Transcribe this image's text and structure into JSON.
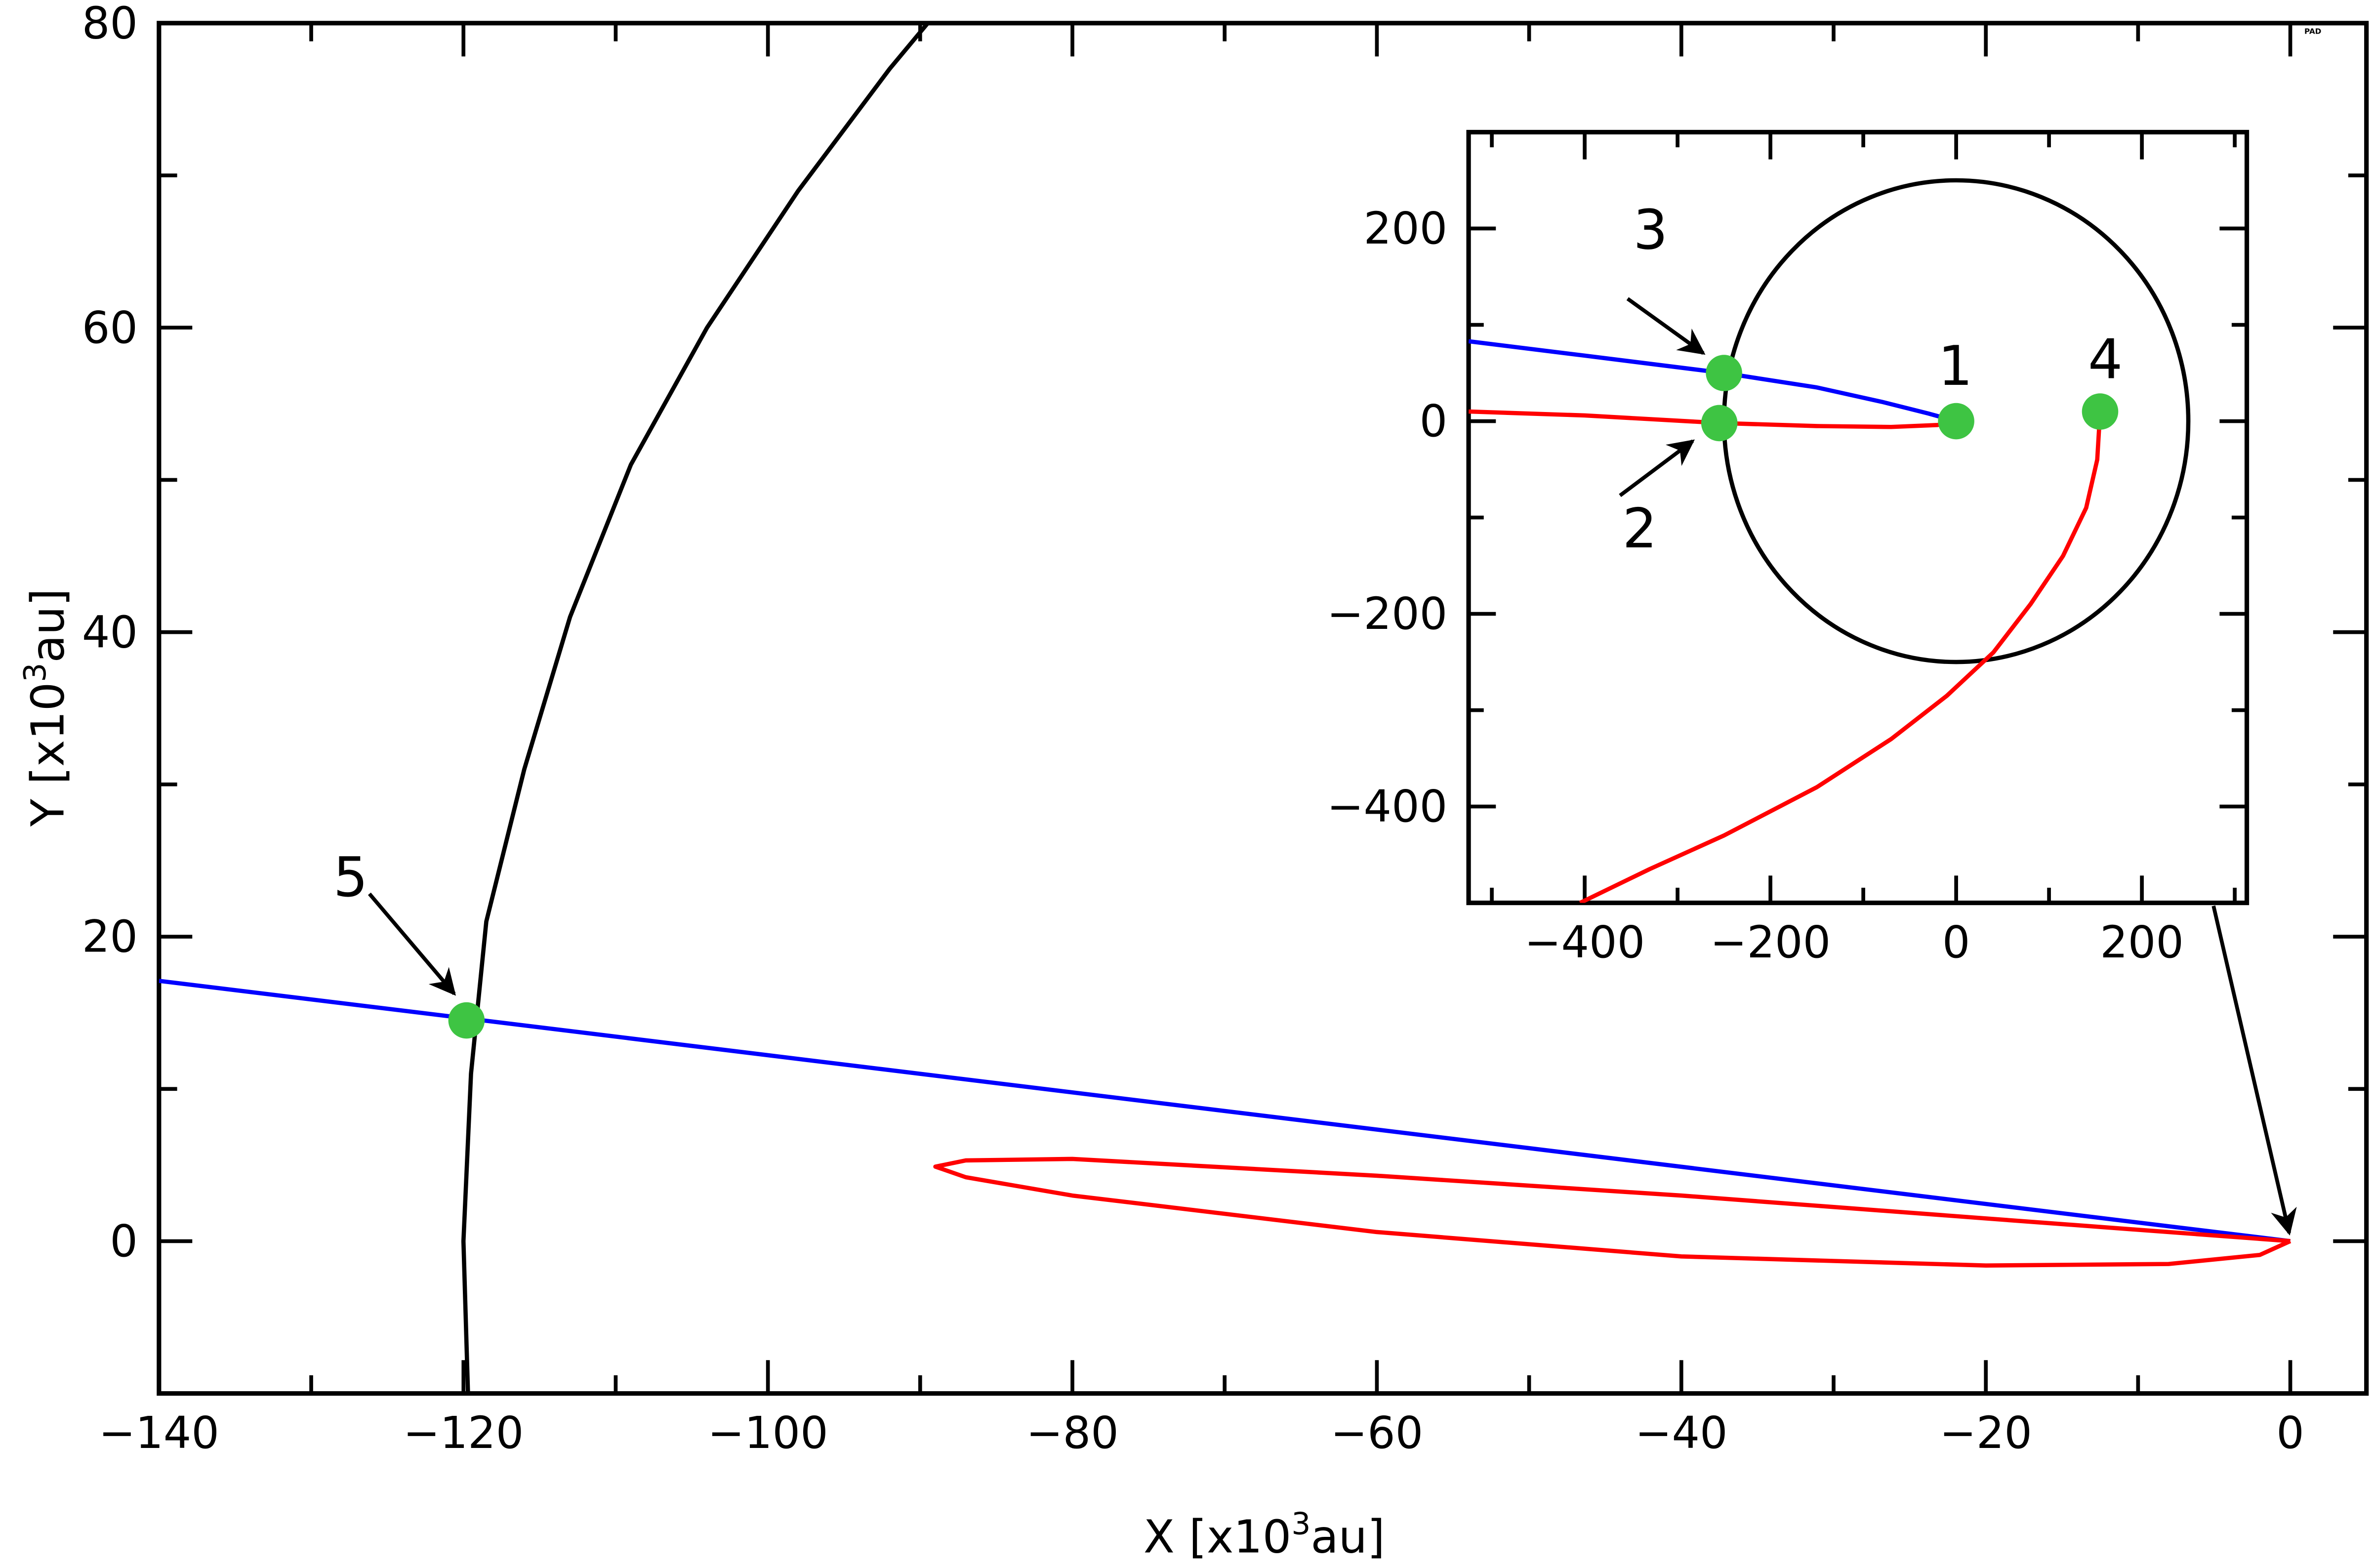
{
  "chart_data": [
    {
      "id": "main",
      "type": "line",
      "xlabel": "X [x10",
      "xlabel_sup": "3",
      "xlabel_tail": "au]",
      "ylabel": "Y [x10",
      "ylabel_sup": "3",
      "ylabel_tail": "au]",
      "xlim": [
        -140,
        5
      ],
      "ylim": [
        -10,
        80
      ],
      "xticks": [
        -140,
        -120,
        -100,
        -80,
        -60,
        -40,
        -20,
        0
      ],
      "yticks": [
        0,
        20,
        40,
        60,
        80
      ],
      "xminor": 10,
      "yminor": 10,
      "corner_text": "PAD",
      "series": [
        {
          "name": "boundary",
          "color": "#000000",
          "points": [
            [
              -89.5,
              80
            ],
            [
              -92,
              77
            ],
            [
              -98,
              69
            ],
            [
              -104,
              60
            ],
            [
              -109,
              51
            ],
            [
              -113,
              41
            ],
            [
              -116,
              31
            ],
            [
              -118.5,
              21
            ],
            [
              -119.5,
              11
            ],
            [
              -120,
              0
            ],
            [
              -119.7,
              -10
            ]
          ]
        },
        {
          "name": "blue-trajectory",
          "color": "#0000ff",
          "points": [
            [
              -140,
              17.1
            ],
            [
              0,
              0
            ]
          ]
        },
        {
          "name": "red-orbit",
          "color": "#ff0000",
          "points": [
            [
              0,
              0
            ],
            [
              -20,
              1.5
            ],
            [
              -40,
              3.0
            ],
            [
              -60,
              4.3
            ],
            [
              -80,
              5.4
            ],
            [
              -87,
              5.3
            ],
            [
              -89,
              4.9
            ],
            [
              -87,
              4.2
            ],
            [
              -80,
              3.0
            ],
            [
              -60,
              0.6
            ],
            [
              -40,
              -1.0
            ],
            [
              -20,
              -1.6
            ],
            [
              -8,
              -1.5
            ],
            [
              -2,
              -0.9
            ],
            [
              0,
              0
            ]
          ]
        }
      ],
      "markers": [
        {
          "label": "5",
          "x": -119.8,
          "y": 14.5,
          "color": "#3ec443"
        }
      ]
    },
    {
      "id": "inset",
      "type": "line",
      "xlim": [
        -525,
        313
      ],
      "ylim": [
        -500,
        300
      ],
      "xticks": [
        -400,
        -200,
        0,
        200
      ],
      "yticks": [
        -400,
        -200,
        0,
        200
      ],
      "xminor": 100,
      "yminor": 100,
      "series": [
        {
          "name": "circle-r250",
          "color": "#000000",
          "circle_radius": 250
        },
        {
          "name": "blue-trajectory",
          "color": "#0000ff",
          "points": [
            [
              -525,
              83
            ],
            [
              -400,
              68
            ],
            [
              -250,
              50
            ],
            [
              -150,
              35
            ],
            [
              -80,
              20
            ],
            [
              -30,
              8
            ],
            [
              0,
              0
            ]
          ]
        },
        {
          "name": "red-trajectory",
          "color": "#ff0000",
          "points": [
            [
              -525,
              10
            ],
            [
              -400,
              6
            ],
            [
              -255,
              -2
            ],
            [
              -150,
              -5
            ],
            [
              -70,
              -6
            ],
            [
              -20,
              -4
            ],
            [
              0,
              0
            ]
          ]
        },
        {
          "name": "red-spiral",
          "color": "#ff0000",
          "points": [
            [
              155,
              10
            ],
            [
              152,
              -40
            ],
            [
              140,
              -90
            ],
            [
              115,
              -140
            ],
            [
              80,
              -190
            ],
            [
              40,
              -240
            ],
            [
              -10,
              -285
            ],
            [
              -70,
              -330
            ],
            [
              -150,
              -380
            ],
            [
              -250,
              -430
            ],
            [
              -330,
              -465
            ],
            [
              -405,
              -500
            ]
          ]
        }
      ],
      "markers": [
        {
          "label": "1",
          "x": 0,
          "y": 0,
          "color": "#3ec443"
        },
        {
          "label": "2",
          "x": -255,
          "y": -2,
          "color": "#3ec443"
        },
        {
          "label": "3",
          "x": -250,
          "y": 50,
          "color": "#3ec443"
        },
        {
          "label": "4",
          "x": 155,
          "y": 10,
          "color": "#3ec443"
        }
      ]
    }
  ]
}
